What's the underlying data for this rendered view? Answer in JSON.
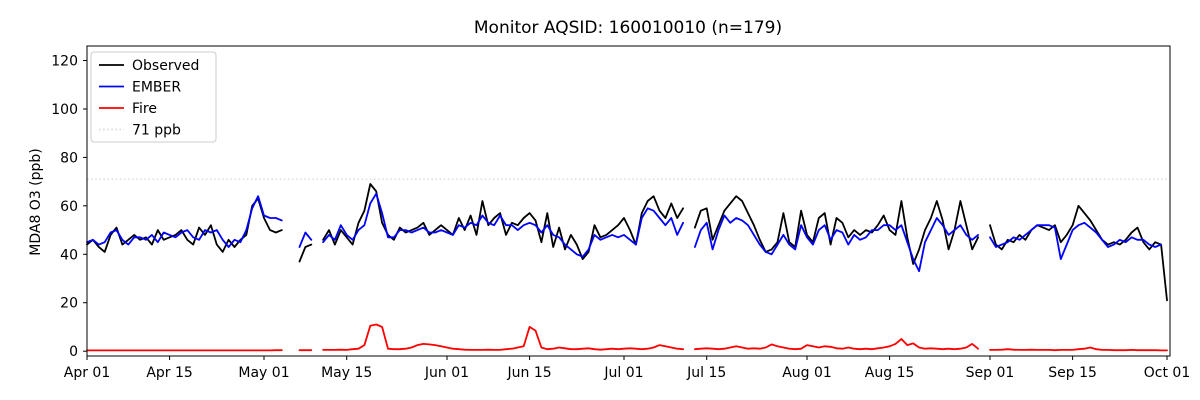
{
  "figure": {
    "background": "#ffffff"
  },
  "chart_data": {
    "type": "line",
    "title": "Monitor AQSID: 160010010 (n=179)",
    "xlabel": "",
    "ylabel": "MDA8 O3 (ppb)",
    "grid": false,
    "ylim": [
      -2,
      126
    ],
    "y_ticks": [
      0,
      20,
      40,
      60,
      80,
      100,
      120
    ],
    "x_unit": "day index, 0 = Apr 01",
    "x_ticks": [
      {
        "day": 0,
        "label": "Apr 01"
      },
      {
        "day": 14,
        "label": "Apr 15"
      },
      {
        "day": 30,
        "label": "May 01"
      },
      {
        "day": 44,
        "label": "May 15"
      },
      {
        "day": 61,
        "label": "Jun 01"
      },
      {
        "day": 75,
        "label": "Jun 15"
      },
      {
        "day": 91,
        "label": "Jul 01"
      },
      {
        "day": 105,
        "label": "Jul 15"
      },
      {
        "day": 122,
        "label": "Aug 01"
      },
      {
        "day": 136,
        "label": "Aug 15"
      },
      {
        "day": 153,
        "label": "Sep 01"
      },
      {
        "day": 167,
        "label": "Sep 15"
      },
      {
        "day": 183,
        "label": "Oct 01"
      }
    ],
    "threshold": {
      "value": 71,
      "label": "71 ppb",
      "color": "#d9d9d9",
      "style": "dotted"
    },
    "legend": {
      "position": "upper left",
      "entries": [
        "Observed",
        "EMBER",
        "Fire",
        "71 ppb"
      ]
    },
    "series": [
      {
        "name": "Observed",
        "color": "#000000",
        "style": "solid",
        "values": [
          44,
          46,
          43,
          41,
          48,
          51,
          44,
          46,
          48,
          46,
          47,
          44,
          50,
          46,
          47,
          48,
          50,
          46,
          44,
          51,
          48,
          52,
          44,
          41,
          46,
          43,
          46,
          48,
          60,
          63,
          55,
          50,
          49,
          50,
          null,
          null,
          37,
          43,
          44,
          null,
          46,
          50,
          44,
          50,
          47,
          44,
          53,
          58,
          69,
          66,
          53,
          48,
          46,
          51,
          49,
          50,
          51,
          53,
          48,
          50,
          52,
          50,
          48,
          55,
          50,
          56,
          48,
          62,
          52,
          55,
          57,
          48,
          53,
          52,
          55,
          57,
          54,
          45,
          57,
          43,
          51,
          42,
          48,
          44,
          38,
          41,
          52,
          47,
          48,
          50,
          52,
          55,
          50,
          44,
          57,
          62,
          64,
          58,
          55,
          61,
          55,
          59,
          null,
          51,
          58,
          59,
          46,
          52,
          58,
          61,
          64,
          62,
          57,
          52,
          46,
          41,
          42,
          45,
          57,
          45,
          43,
          58,
          48,
          45,
          55,
          57,
          44,
          55,
          53,
          47,
          50,
          48,
          50,
          49,
          52,
          56,
          50,
          48,
          62,
          47,
          36,
          42,
          50,
          55,
          62,
          54,
          42,
          50,
          62,
          52,
          42,
          47,
          null,
          52,
          44,
          42,
          46,
          45,
          48,
          46,
          50,
          52,
          51,
          50,
          52,
          45,
          48,
          52,
          60,
          57,
          54,
          50,
          46,
          44,
          45,
          44,
          46,
          49,
          51,
          45,
          42,
          45,
          44,
          21
        ]
      },
      {
        "name": "EMBER",
        "color": "#0000ff",
        "style": "solid",
        "values": [
          45,
          46,
          44,
          45,
          49,
          50,
          46,
          44,
          47,
          47,
          46,
          48,
          45,
          49,
          48,
          47,
          49,
          50,
          47,
          46,
          50,
          49,
          50,
          46,
          43,
          46,
          45,
          50,
          59,
          64,
          56,
          55,
          55,
          54,
          null,
          null,
          43,
          49,
          46,
          null,
          45,
          48,
          46,
          52,
          48,
          46,
          50,
          52,
          61,
          65,
          57,
          47,
          47,
          50,
          50,
          49,
          50,
          51,
          49,
          49,
          50,
          49,
          48,
          52,
          51,
          53,
          52,
          56,
          53,
          52,
          56,
          52,
          52,
          50,
          52,
          53,
          52,
          49,
          52,
          48,
          47,
          44,
          42,
          40,
          39,
          42,
          48,
          46,
          47,
          48,
          47,
          48,
          46,
          44,
          55,
          59,
          58,
          55,
          52,
          55,
          48,
          53,
          null,
          43,
          50,
          53,
          42,
          50,
          56,
          53,
          55,
          54,
          52,
          48,
          44,
          41,
          40,
          44,
          48,
          44,
          42,
          52,
          47,
          44,
          50,
          52,
          46,
          50,
          49,
          44,
          48,
          46,
          47,
          50,
          50,
          52,
          52,
          50,
          52,
          45,
          38,
          33,
          45,
          50,
          55,
          52,
          48,
          50,
          52,
          48,
          46,
          48,
          null,
          47,
          43,
          44,
          45,
          47,
          46,
          48,
          50,
          52,
          52,
          52,
          51,
          38,
          44,
          50,
          52,
          53,
          51,
          49,
          46,
          43,
          44,
          46,
          45,
          47,
          46,
          46,
          44,
          43,
          44,
          null
        ]
      },
      {
        "name": "Fire",
        "color": "#ff0000",
        "style": "solid",
        "values": [
          0.3,
          0.3,
          0.3,
          0.3,
          0.3,
          0.3,
          0.3,
          0.3,
          0.3,
          0.3,
          0.3,
          0.3,
          0.3,
          0.3,
          0.3,
          0.3,
          0.3,
          0.3,
          0.3,
          0.3,
          0.3,
          0.3,
          0.3,
          0.3,
          0.3,
          0.3,
          0.3,
          0.3,
          0.3,
          0.3,
          0.3,
          0.3,
          0.4,
          0.4,
          null,
          null,
          0.4,
          0.4,
          0.4,
          null,
          0.5,
          0.5,
          0.5,
          0.6,
          0.5,
          0.8,
          1.0,
          2.5,
          10.5,
          11.0,
          10.0,
          1.0,
          0.8,
          0.8,
          1.0,
          1.5,
          2.5,
          3.0,
          2.8,
          2.5,
          2.0,
          1.5,
          1.0,
          0.8,
          0.6,
          0.5,
          0.5,
          0.5,
          0.6,
          0.5,
          0.5,
          0.8,
          1.0,
          1.5,
          2.0,
          10.0,
          8.5,
          1.5,
          0.8,
          1.0,
          1.5,
          1.2,
          0.8,
          0.8,
          1.0,
          1.2,
          0.8,
          0.6,
          0.8,
          1.0,
          0.8,
          1.0,
          1.2,
          1.0,
          0.8,
          1.0,
          1.5,
          2.5,
          2.0,
          1.5,
          1.0,
          0.8,
          null,
          0.8,
          1.0,
          1.2,
          1.0,
          0.8,
          1.0,
          1.5,
          2.0,
          1.5,
          1.0,
          1.2,
          1.0,
          1.5,
          2.8,
          2.0,
          1.5,
          1.0,
          0.8,
          1.0,
          2.5,
          2.0,
          1.5,
          2.0,
          1.8,
          1.2,
          1.0,
          1.5,
          1.0,
          0.8,
          1.0,
          0.8,
          1.2,
          1.5,
          2.0,
          3.0,
          5.0,
          2.5,
          3.2,
          1.5,
          1.0,
          1.2,
          1.0,
          0.8,
          1.0,
          0.8,
          1.0,
          1.5,
          3.0,
          1.0,
          null,
          0.5,
          0.5,
          0.6,
          0.8,
          0.6,
          0.5,
          0.5,
          0.6,
          0.5,
          0.5,
          0.5,
          0.4,
          0.5,
          0.5,
          0.5,
          0.8,
          1.0,
          1.5,
          0.8,
          0.5,
          0.5,
          0.4,
          0.4,
          0.4,
          0.5,
          0.4,
          0.4,
          0.4,
          0.4,
          0.3,
          0.3
        ]
      }
    ]
  }
}
